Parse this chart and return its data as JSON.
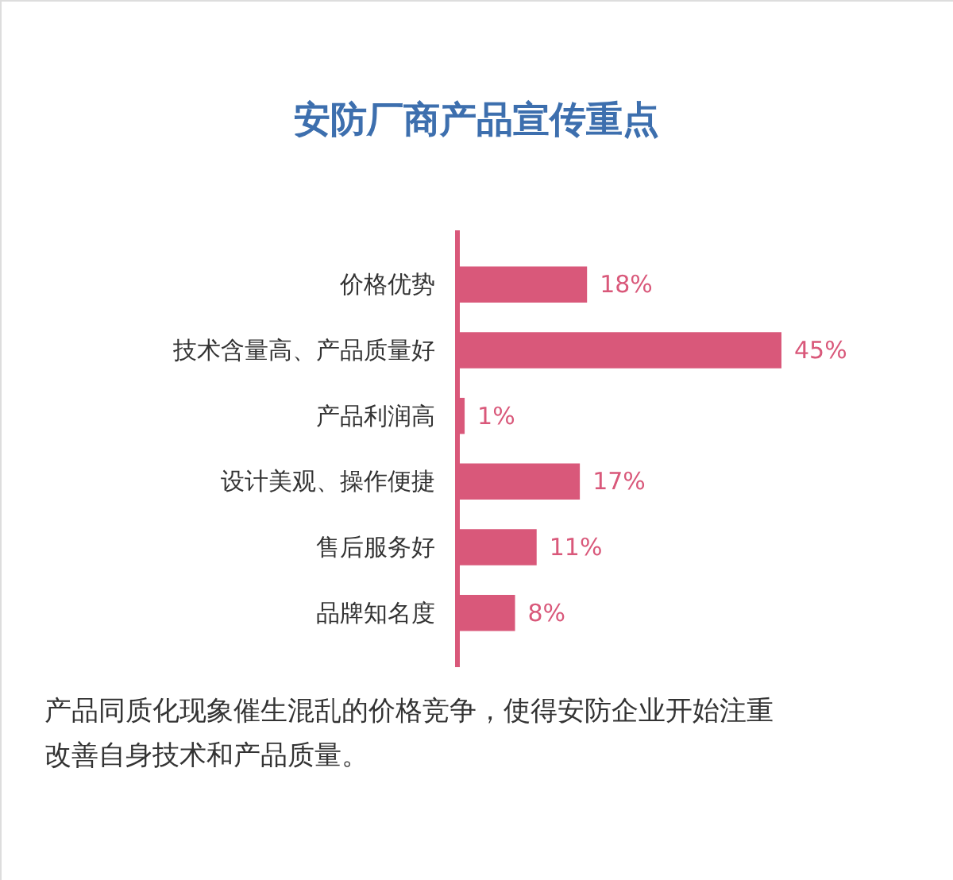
{
  "chart_data": {
    "type": "bar",
    "orientation": "horizontal",
    "title": "安防厂商产品宣传重点",
    "categories": [
      "价格优势",
      "技术含量高、产品质量好",
      "产品利润高",
      "设计美观、操作便捷",
      "售后服务好",
      "品牌知名度"
    ],
    "values": [
      18,
      45,
      1,
      17,
      11,
      8
    ],
    "value_labels": [
      "18%",
      "45%",
      "1%",
      "17%",
      "11%",
      "8%"
    ],
    "color": "#d9587a",
    "annotations": [
      "产品同质化现象催生混乱的价格竞争，使得安防企业开始注重改善自身技术和产品质量。"
    ]
  }
}
